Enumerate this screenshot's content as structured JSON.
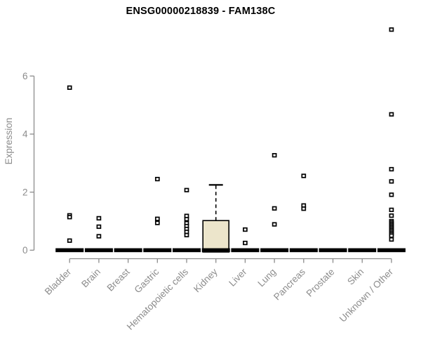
{
  "title": "ENSG00000218839 - FAM138C",
  "chart_data": {
    "type": "boxplot",
    "title": "ENSG00000218839 - FAM138C",
    "xlabel": "",
    "ylabel": "Expression",
    "ylim": [
      0,
      6
    ],
    "yticks": [
      0,
      2,
      4,
      6
    ],
    "grid": false,
    "legend": "none",
    "categories": [
      "Bladder",
      "Brain",
      "Breast",
      "Gastric",
      "Hematopoietic cells",
      "Kidney",
      "Liver",
      "Lung",
      "Pancreas",
      "Prostate",
      "Skin",
      "Unknown / Other"
    ],
    "series": [
      {
        "name": "Bladder",
        "q1": 0,
        "median": 0,
        "q3": 0,
        "whisker_low": 0,
        "whisker_high": 0,
        "outliers": [
          5.6,
          1.2,
          1.14,
          0.33
        ]
      },
      {
        "name": "Brain",
        "q1": 0,
        "median": 0,
        "q3": 0,
        "whisker_low": 0,
        "whisker_high": 0,
        "outliers": [
          1.1,
          0.81,
          0.48
        ]
      },
      {
        "name": "Breast",
        "q1": 0,
        "median": 0,
        "q3": 0,
        "whisker_low": 0,
        "whisker_high": 0,
        "outliers": []
      },
      {
        "name": "Gastric",
        "q1": 0,
        "median": 0,
        "q3": 0,
        "whisker_low": 0,
        "whisker_high": 0,
        "outliers": [
          2.45,
          1.08,
          0.94
        ]
      },
      {
        "name": "Hematopoietic cells",
        "q1": 0,
        "median": 0,
        "q3": 0,
        "whisker_low": 0,
        "whisker_high": 0,
        "outliers": [
          2.07,
          1.18,
          1.07,
          0.93,
          0.83,
          0.73,
          0.63,
          0.52
        ]
      },
      {
        "name": "Kidney",
        "q1": 0,
        "median": 0,
        "q3": 1.02,
        "whisker_low": 0,
        "whisker_high": 2.25,
        "outliers": []
      },
      {
        "name": "Liver",
        "q1": 0,
        "median": 0,
        "q3": 0,
        "whisker_low": 0,
        "whisker_high": 0,
        "outliers": [
          0.71,
          0.25
        ]
      },
      {
        "name": "Lung",
        "q1": 0,
        "median": 0,
        "q3": 0,
        "whisker_low": 0,
        "whisker_high": 0,
        "outliers": [
          3.27,
          1.44,
          0.89
        ]
      },
      {
        "name": "Pancreas",
        "q1": 0,
        "median": 0,
        "q3": 0,
        "whisker_low": 0,
        "whisker_high": 0,
        "outliers": [
          2.56,
          1.54,
          1.43
        ]
      },
      {
        "name": "Prostate",
        "q1": 0,
        "median": 0,
        "q3": 0,
        "whisker_low": 0,
        "whisker_high": 0,
        "outliers": []
      },
      {
        "name": "Skin",
        "q1": 0,
        "median": 0,
        "q3": 0,
        "whisker_low": 0,
        "whisker_high": 0,
        "outliers": []
      },
      {
        "name": "Unknown / Other",
        "q1": 0,
        "median": 0,
        "q3": 0,
        "whisker_low": 0,
        "whisker_high": 0,
        "outliers": [
          7.6,
          4.68,
          2.79,
          2.37,
          1.91,
          1.39,
          1.19,
          1.0,
          0.95,
          0.9,
          0.85,
          0.8,
          0.75,
          0.7,
          0.65,
          0.6,
          0.55,
          0.5,
          0.37
        ]
      }
    ],
    "colors": {
      "box_fill": "#ece5cb",
      "box_border": "#000000",
      "median": "#000000",
      "axis": "#8c8c8c",
      "tick_text": "#8c8c8c",
      "title_text": "#000000",
      "outlier_stroke": "#000000",
      "outlier_fill": "#ffffff"
    }
  }
}
